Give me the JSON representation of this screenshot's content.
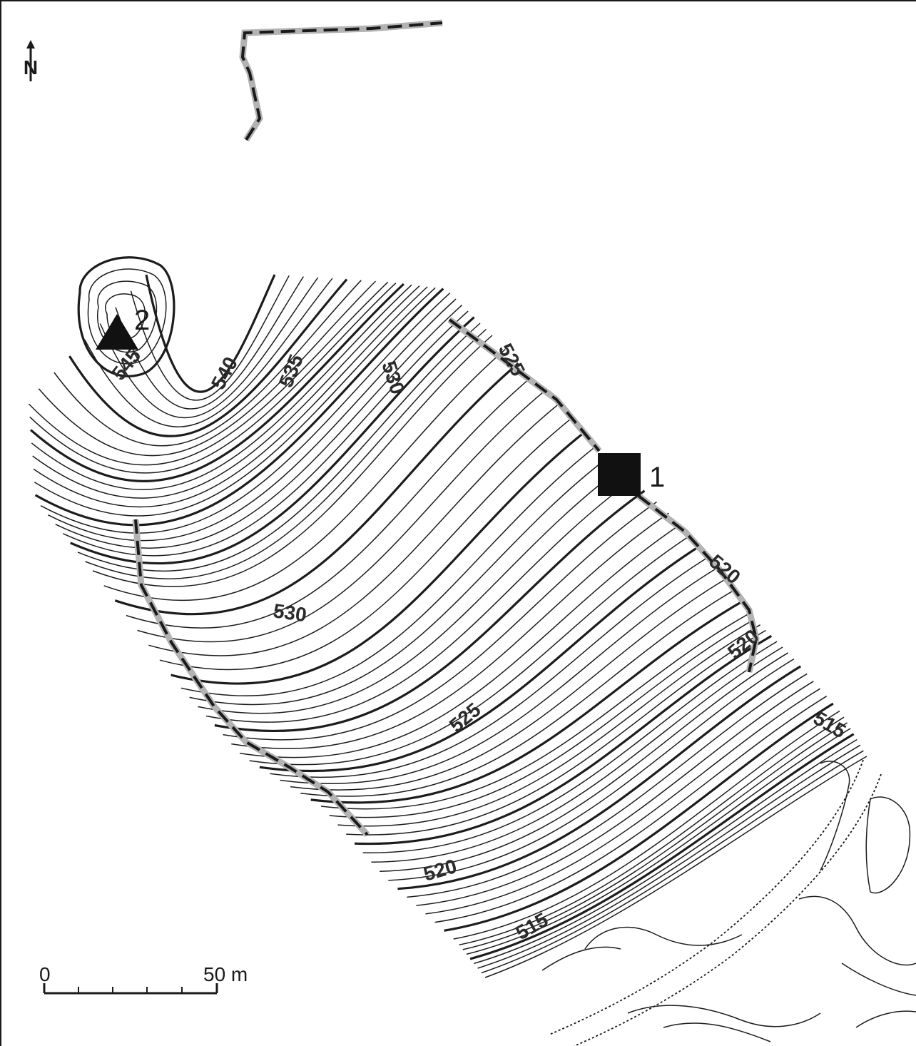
{
  "map": {
    "north_label": "N",
    "contour_labels": [
      "545",
      "540",
      "535",
      "530",
      "525",
      "530",
      "525",
      "520",
      "520",
      "525",
      "520",
      "515",
      "515"
    ],
    "markers": {
      "square_label": "1",
      "triangle_label": "2"
    },
    "scale": {
      "start": "0",
      "end": "50 m"
    }
  },
  "colors": {
    "contour": "#1c1c1c",
    "path_halo": "#b3b3b3",
    "path_dash": "#1a1a1a",
    "marker": "#111111"
  }
}
